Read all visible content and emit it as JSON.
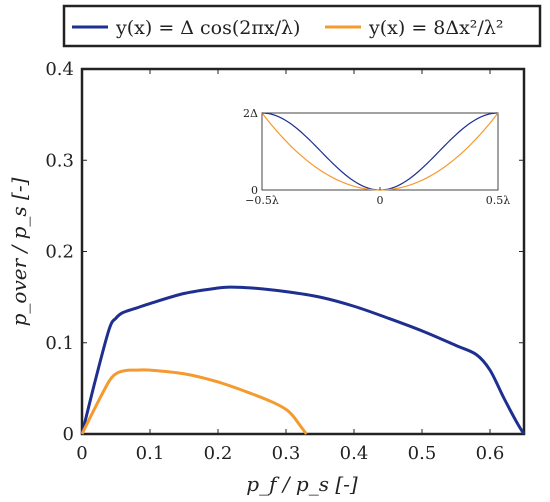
{
  "chart_data": [
    {
      "type": "line",
      "xlabel": "p_f / p_s [-]",
      "ylabel": "p_over / p_s [-]",
      "xlim": [
        0,
        0.65
      ],
      "ylim": [
        0,
        0.4
      ],
      "xticks": [
        "0",
        "0.1",
        "0.2",
        "0.3",
        "0.4",
        "0.5",
        "0.6"
      ],
      "yticks": [
        "0",
        "0.1",
        "0.2",
        "0.3",
        "0.4"
      ],
      "legend_position": "top-outside",
      "series": [
        {
          "name": "y(x) = Δ cos(2πx/λ)",
          "color": "#1f2f8f",
          "x": [
            0,
            0.02,
            0.04,
            0.05,
            0.06,
            0.08,
            0.1,
            0.15,
            0.2,
            0.22,
            0.25,
            0.3,
            0.35,
            0.4,
            0.45,
            0.5,
            0.55,
            0.58,
            0.6,
            0.62,
            0.64,
            0.65
          ],
          "y": [
            0,
            0.06,
            0.115,
            0.127,
            0.133,
            0.138,
            0.143,
            0.154,
            0.16,
            0.161,
            0.16,
            0.156,
            0.15,
            0.14,
            0.127,
            0.113,
            0.097,
            0.087,
            0.07,
            0.04,
            0.012,
            0
          ]
        },
        {
          "name": "y(x) = 8Δx²/λ²",
          "color": "#f59a2e",
          "x": [
            0,
            0.02,
            0.04,
            0.05,
            0.06,
            0.07,
            0.08,
            0.1,
            0.15,
            0.2,
            0.25,
            0.28,
            0.3,
            0.31,
            0.32,
            0.33
          ],
          "y": [
            0,
            0.03,
            0.058,
            0.066,
            0.069,
            0.07,
            0.07,
            0.07,
            0.066,
            0.057,
            0.044,
            0.035,
            0.027,
            0.02,
            0.01,
            0
          ]
        }
      ]
    },
    {
      "type": "line",
      "xticks": [
        "−0.5λ",
        "0",
        "0.5λ"
      ],
      "yticks": [
        "0",
        "2Δ"
      ],
      "xlim": [
        -0.5,
        0.5
      ],
      "ylim": [
        0,
        2
      ],
      "series": [
        {
          "name": "y(x) = Δ cos(2πx/λ)",
          "color": "#1f2f8f"
        },
        {
          "name": "y(x) = 8Δx²/λ²",
          "color": "#f59a2e"
        }
      ]
    }
  ]
}
